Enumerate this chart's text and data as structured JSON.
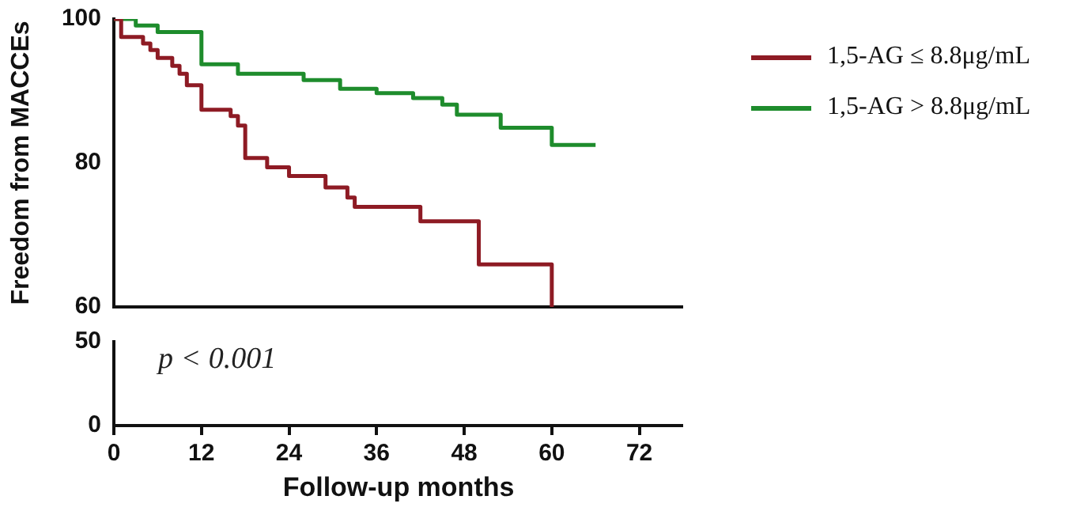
{
  "chart_data": [
    {
      "type": "step",
      "ylabel": "Freedom from MACCEs",
      "xlim": [
        0,
        78
      ],
      "ylim": [
        60,
        100
      ],
      "yticks": [
        60,
        80,
        100
      ],
      "tick_labels": "y",
      "legend": "right",
      "series": [
        {
          "name": "1,5-AG ≤ 8.8μg/mL",
          "color": "#8e1b24",
          "x": [
            0,
            1,
            4,
            5,
            6,
            8,
            9,
            10,
            12,
            16,
            17,
            18,
            21,
            24,
            29,
            32,
            33,
            42,
            50,
            60
          ],
          "values": [
            100,
            97.5,
            96.6,
            95.7,
            94.6,
            93.5,
            92.4,
            90.8,
            87.4,
            86.5,
            85.2,
            80.7,
            79.4,
            78.2,
            76.6,
            75.2,
            73.9,
            71.9,
            65.9,
            60
          ]
        },
        {
          "name": "1,5-AG > 8.8μg/mL",
          "color": "#1e8c2c",
          "x": [
            0,
            3,
            6,
            12,
            17,
            26,
            31,
            36,
            41,
            45,
            47,
            53,
            60,
            66
          ],
          "values": [
            100,
            99.1,
            98.2,
            93.7,
            92.4,
            91.5,
            90.3,
            89.7,
            89,
            88.1,
            86.7,
            84.9,
            82.5,
            82.5
          ]
        }
      ]
    },
    {
      "type": "step",
      "xlabel": "Follow-up months",
      "xlim": [
        0,
        78
      ],
      "xticks": [
        0,
        12,
        24,
        36,
        48,
        60,
        72
      ],
      "ylim": [
        0,
        50
      ],
      "yticks": [
        0,
        50
      ],
      "annotations": [
        "p < 0.001"
      ]
    }
  ]
}
